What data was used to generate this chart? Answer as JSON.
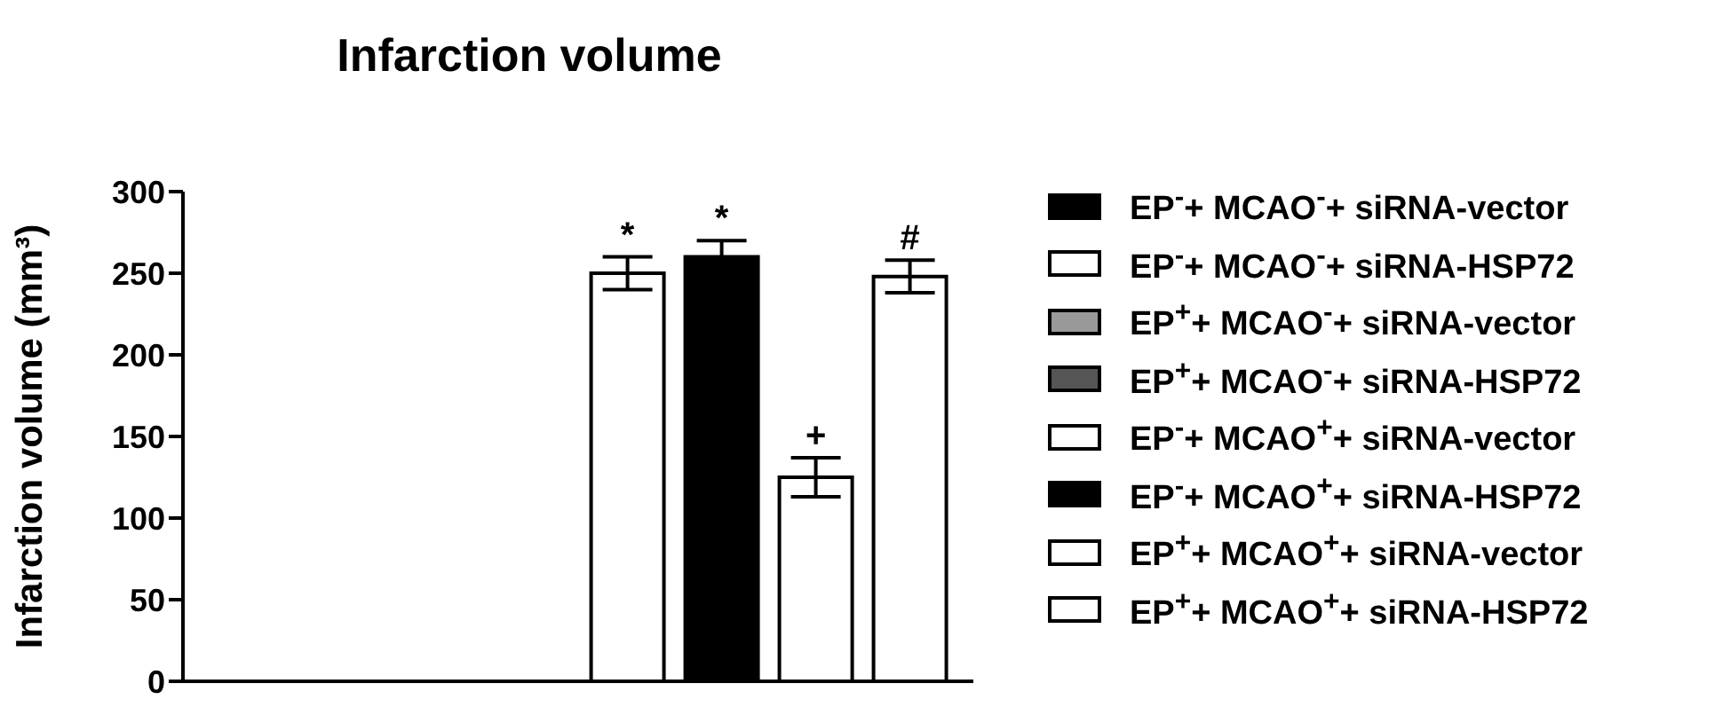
{
  "chart_data": {
    "type": "bar",
    "title": "Infarction volume",
    "ylabel": "Infarction volume (mm³)",
    "categories": [
      null
    ],
    "ylim": [
      0,
      300
    ],
    "yticks": [
      0,
      50,
      100,
      150,
      200,
      250,
      300
    ],
    "legend": "right",
    "series": [
      {
        "name": "EP$^{-}$+ MCAO$^{-}$+ siRNA-vector",
        "color": "#000000",
        "values": [
          0
        ]
      },
      {
        "name": "EP$^{-}$+ MCAO$^{-}$+ siRNA-HSP72",
        "color": "#ffffff",
        "values": [
          0
        ]
      },
      {
        "name": "EP$^{+}$+ MCAO$^{-}$+ siRNA-vector",
        "color": "#999999",
        "values": [
          0
        ]
      },
      {
        "name": "EP$^{+}$+ MCAO$^{-}$+ siRNA-HSP72",
        "color": "#555555",
        "values": [
          0
        ]
      },
      {
        "name": "EP$^{-}$+ MCAO$^{+}$+ siRNA-vector",
        "color": "#ffffff",
        "values": [
          250
        ],
        "errors": [
          10
        ],
        "value_labels": [
          "*"
        ]
      },
      {
        "name": "EP$^{-}$+ MCAO$^{+}$+ siRNA-HSP72",
        "color": "#000000",
        "values": [
          260
        ],
        "errors": [
          10
        ],
        "value_labels": [
          "*"
        ]
      },
      {
        "name": "EP$^{+}$+ MCAO$^{+}$+ siRNA-vector",
        "color": "#ffffff",
        "values": [
          125
        ],
        "errors": [
          12
        ],
        "value_labels": [
          "+"
        ]
      },
      {
        "name": "EP$^{+}$+ MCAO$^{+}$+ siRNA-HSP72",
        "color": "#ffffff",
        "values": [
          248
        ],
        "errors": [
          10
        ],
        "value_labels": [
          "#"
        ]
      }
    ]
  }
}
